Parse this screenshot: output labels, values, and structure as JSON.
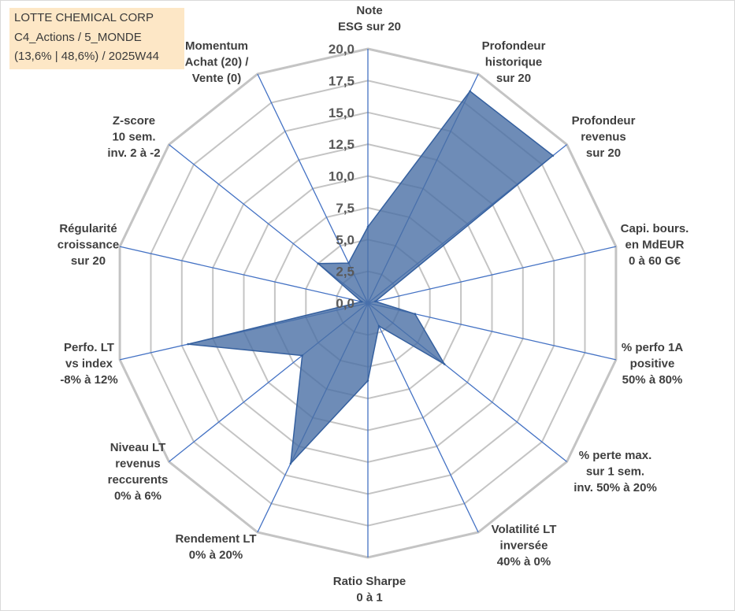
{
  "title_box": {
    "lines": [
      "LOTTE CHEMICAL CORP",
      "C4_Actions / 5_MONDE",
      "(13,6% | 48,6%) / 2025W44"
    ]
  },
  "colors": {
    "title_box_background": "#fde7c6",
    "series_fill": "#4a6fa5",
    "series_stroke": "#35609f",
    "axis_spoke": "#4472c4",
    "grid_ring": "#c4c4c4",
    "tick_label": "#595959",
    "axis_label": "#3f3f3f"
  },
  "chart_data": {
    "type": "radar",
    "categories": [
      [
        "Note",
        "ESG sur 20"
      ],
      [
        "Profondeur",
        "historique",
        "sur 20"
      ],
      [
        "Profondeur",
        "revenus",
        "sur 20"
      ],
      [
        "Capi. bours.",
        "en MdEUR",
        "0 à 60 G€"
      ],
      [
        "% perfo 1A",
        "positive",
        "50% à 80%"
      ],
      [
        "% perte max.",
        "sur 1 sem.",
        "inv. 50% à 20%"
      ],
      [
        "Volatilité LT",
        "inversée",
        "40% à 0%"
      ],
      [
        "Ratio Sharpe",
        "0 à 1"
      ],
      [
        "Rendement LT",
        "0% à 20%"
      ],
      [
        "Niveau LT",
        "revenus",
        "reccurents",
        "0% à 6%"
      ],
      [
        "Perfo. LT",
        "vs index",
        "-8% à 12%"
      ],
      [
        "Régularité",
        "croissance",
        "sur 20"
      ],
      [
        "Z-score",
        "10 sem.",
        "inv. 2 à -2"
      ],
      [
        "Momentum",
        "Achat (20) /",
        "Vente (0)"
      ]
    ],
    "series": [
      {
        "values": [
          6.0,
          18.5,
          18.6,
          0.6,
          3.8,
          7.7,
          2.0,
          6.1,
          14.0,
          6.6,
          14.5,
          0.5,
          5.0,
          3.5
        ]
      }
    ],
    "rlim": [
      0,
      20
    ],
    "r_ticks": [
      0,
      2.5,
      5,
      7.5,
      10,
      12.5,
      15,
      17.5,
      20
    ],
    "r_tick_labels": [
      "0,0",
      "2,5",
      "5,0",
      "7,5",
      "10,0",
      "12,5",
      "15,0",
      "17,5",
      "20,0"
    ],
    "grid": true,
    "legend": "none"
  }
}
